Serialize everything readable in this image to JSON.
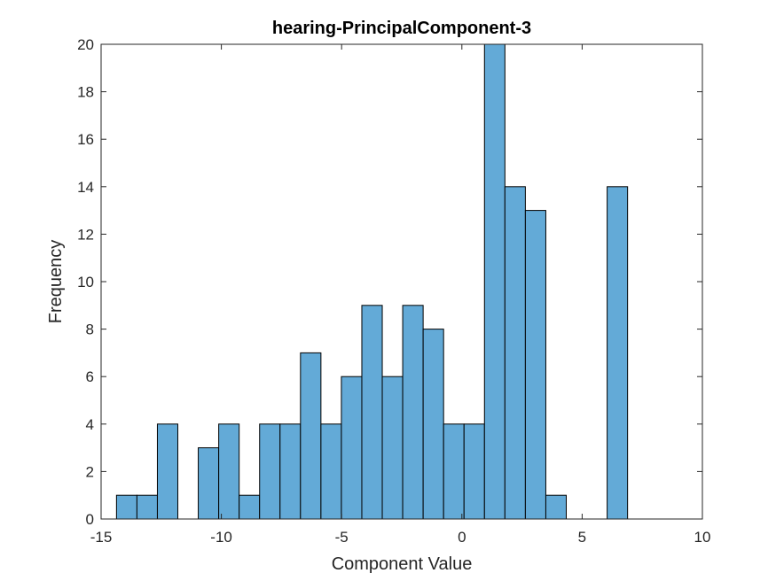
{
  "chart_data": {
    "type": "bar",
    "title": "hearing-PrincipalComponent-3",
    "xlabel": "Component Value",
    "ylabel": "Frequency",
    "xlim": [
      -15,
      10
    ],
    "ylim": [
      0,
      20
    ],
    "xticks": [
      -15,
      -10,
      -5,
      0,
      5,
      10
    ],
    "yticks": [
      0,
      2,
      4,
      6,
      8,
      10,
      12,
      14,
      16,
      18,
      20
    ],
    "bin_edges": [
      -14.36,
      -13.51,
      -12.66,
      -11.81,
      -10.96,
      -10.11,
      -9.26,
      -8.41,
      -7.56,
      -6.71,
      -5.86,
      -5.01,
      -4.16,
      -3.31,
      -2.46,
      -1.61,
      -0.76,
      0.09,
      0.94,
      1.79,
      2.64,
      3.49,
      4.34,
      5.19,
      6.04,
      6.89
    ],
    "values": [
      1,
      1,
      4,
      0,
      3,
      4,
      1,
      4,
      4,
      7,
      4,
      6,
      9,
      6,
      9,
      8,
      4,
      4,
      20,
      14,
      13,
      1,
      0,
      0,
      14
    ],
    "bar_color": "#63aad7",
    "edge_color": "#000000",
    "grid": false,
    "legend": "none"
  }
}
